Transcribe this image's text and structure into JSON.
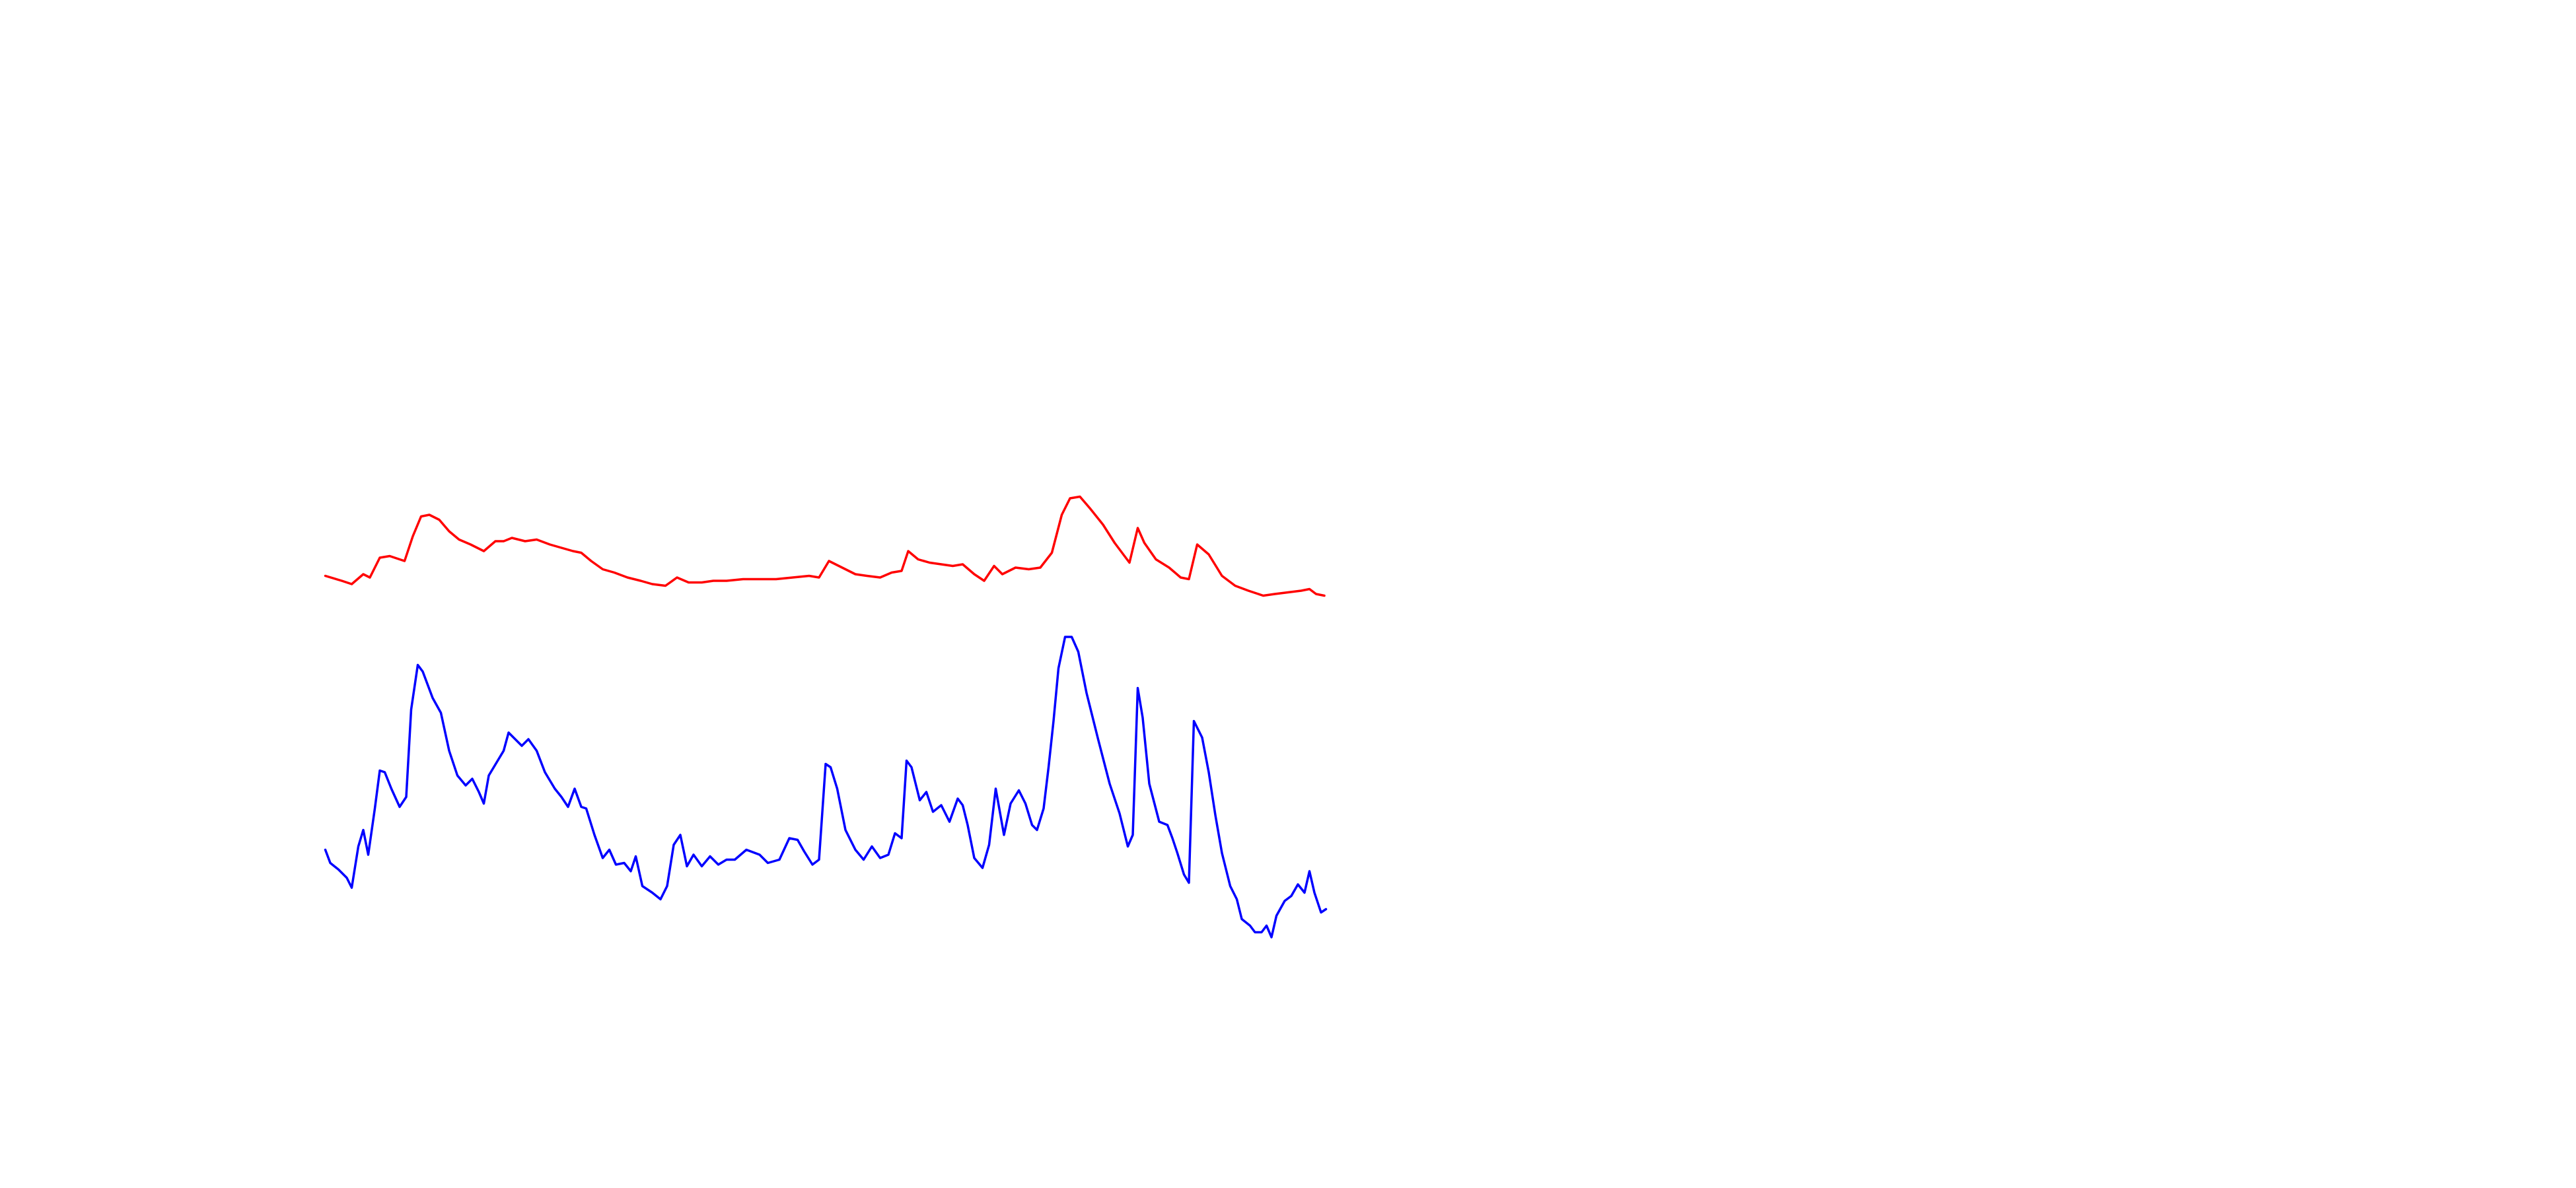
{
  "chart_data": {
    "type": "line",
    "xlim": [
      0,
      1560
    ],
    "ylim": [
      720,
      0
    ],
    "series": [
      {
        "color": "#ff0000",
        "x": [
          197,
          207,
          213,
          220,
          224,
          230,
          236,
          245,
          250,
          255,
          260,
          266,
          272,
          278,
          285,
          293,
          300,
          305,
          310,
          318,
          325,
          333,
          340,
          347,
          352,
          358,
          365,
          372,
          380,
          388,
          395,
          403,
          410,
          417,
          425,
          432,
          440,
          450,
          460,
          470,
          480,
          490,
          496,
          502,
          510,
          518,
          525,
          533,
          540,
          546,
          550,
          556,
          563,
          570,
          577,
          583,
          590,
          596,
          602,
          607,
          615,
          623,
          630,
          637,
          643,
          648,
          654,
          660,
          668,
          675,
          684,
          689,
          693,
          700,
          708,
          715,
          720,
          725,
          732,
          740,
          748,
          756,
          765,
          772,
          780,
          788,
          793,
          797,
          802
        ],
        "values": [
          349,
          352,
          354,
          348,
          350,
          338,
          337,
          340,
          325,
          313,
          312,
          315,
          322,
          327,
          330,
          334,
          328,
          328,
          326,
          328,
          327,
          330,
          332,
          334,
          335,
          340,
          345,
          347,
          350,
          352,
          354,
          355,
          350,
          353,
          353,
          352,
          352,
          351,
          351,
          351,
          350,
          349,
          350,
          340,
          344,
          348,
          349,
          350,
          347,
          346,
          334,
          339,
          341,
          342,
          343,
          342,
          348,
          352,
          343,
          348,
          344,
          345,
          344,
          335,
          312,
          302,
          301,
          308,
          318,
          329,
          341,
          320,
          329,
          339,
          344,
          350,
          351,
          330,
          336,
          349,
          355,
          358,
          361,
          360,
          359,
          358,
          357,
          360,
          361
        ]
      },
      {
        "color": "#0000ff",
        "x": [
          197,
          200,
          205,
          210,
          213,
          217,
          220,
          223,
          227,
          230,
          233,
          237,
          242,
          246,
          249,
          253,
          256,
          262,
          267,
          272,
          277,
          282,
          286,
          290,
          293,
          296,
          302,
          305,
          308,
          312,
          316,
          320,
          325,
          330,
          336,
          340,
          344,
          348,
          352,
          355,
          360,
          365,
          369,
          373,
          378,
          382,
          385,
          389,
          395,
          400,
          404,
          408,
          412,
          416,
          420,
          425,
          430,
          435,
          440,
          445,
          452,
          460,
          465,
          472,
          478,
          483,
          487,
          492,
          496,
          500,
          503,
          507,
          512,
          518,
          523,
          528,
          533,
          538,
          542,
          546,
          549,
          552,
          557,
          561,
          565,
          570,
          575,
          580,
          583,
          586,
          590,
          595,
          599,
          603,
          608,
          612,
          617,
          621,
          625,
          628,
          632,
          635,
          638,
          641,
          645,
          649,
          653,
          658,
          665,
          672,
          678,
          683,
          686,
          689,
          692,
          696,
          702,
          707,
          710,
          713,
          717,
          720,
          723,
          728,
          732,
          736,
          740,
          745,
          749,
          752,
          757,
          760,
          764,
          767,
          770,
          773,
          778,
          782,
          786,
          790,
          793,
          796,
          800,
          803
        ],
        "values": [
          515,
          523,
          527,
          532,
          538,
          513,
          503,
          518,
          490,
          467,
          468,
          478,
          489,
          483,
          430,
          403,
          407,
          423,
          432,
          455,
          470,
          476,
          472,
          480,
          487,
          470,
          460,
          455,
          444,
          448,
          452,
          448,
          455,
          468,
          478,
          483,
          489,
          478,
          489,
          490,
          506,
          520,
          515,
          524,
          523,
          528,
          519,
          537,
          541,
          545,
          537,
          512,
          506,
          525,
          518,
          525,
          519,
          524,
          521,
          521,
          515,
          518,
          523,
          521,
          508,
          509,
          516,
          524,
          521,
          463,
          465,
          478,
          503,
          515,
          521,
          513,
          520,
          518,
          505,
          508,
          461,
          465,
          485,
          480,
          492,
          488,
          498,
          484,
          488,
          500,
          520,
          526,
          512,
          478,
          506,
          487,
          479,
          487,
          500,
          503,
          490,
          465,
          437,
          405,
          386,
          386,
          395,
          420,
          448,
          475,
          493,
          513,
          506,
          417,
          435,
          475,
          498,
          500,
          508,
          517,
          530,
          535,
          437,
          447,
          468,
          494,
          517,
          537,
          545,
          557,
          561,
          565,
          565,
          561,
          568,
          555,
          546,
          543,
          536,
          541,
          528,
          541,
          553,
          551
        ]
      }
    ]
  }
}
